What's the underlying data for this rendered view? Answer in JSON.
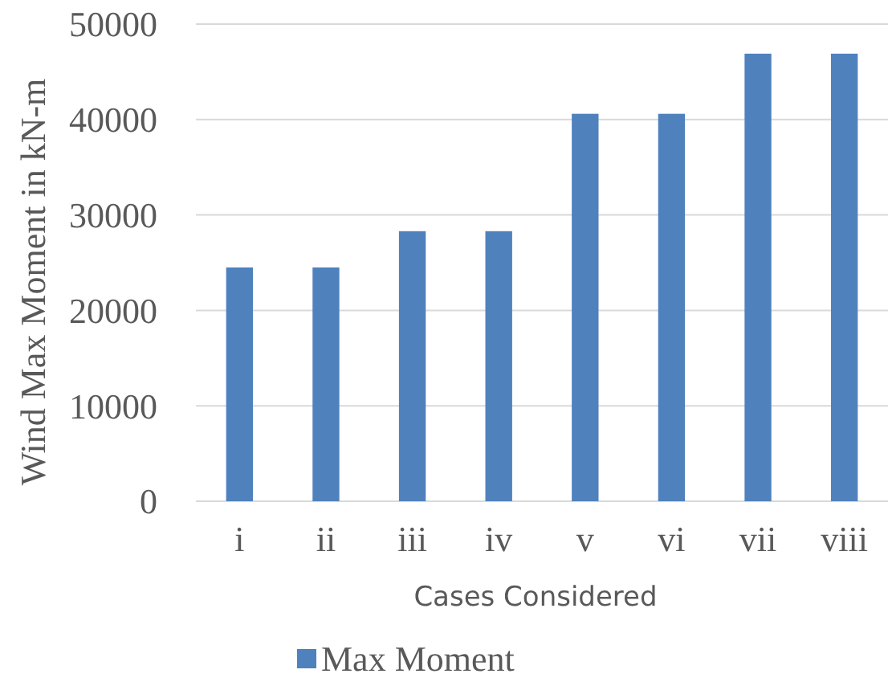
{
  "chart_data": {
    "type": "bar",
    "xlabel": "Cases Considered",
    "ylabel": "Wind Max Moment in kN-m",
    "categories": [
      "i",
      "ii",
      "iii",
      "iv",
      "v",
      "vi",
      "vii",
      "viii"
    ],
    "series": [
      {
        "name": "Max Moment",
        "color": "#4f81bd",
        "values": [
          24500,
          24500,
          28300,
          28300,
          40600,
          40600,
          46900,
          46900
        ]
      }
    ],
    "ylim": [
      0,
      50000
    ],
    "yticks": [
      0,
      10000,
      20000,
      30000,
      40000,
      50000
    ],
    "grid": "y",
    "legend": "bottom"
  }
}
